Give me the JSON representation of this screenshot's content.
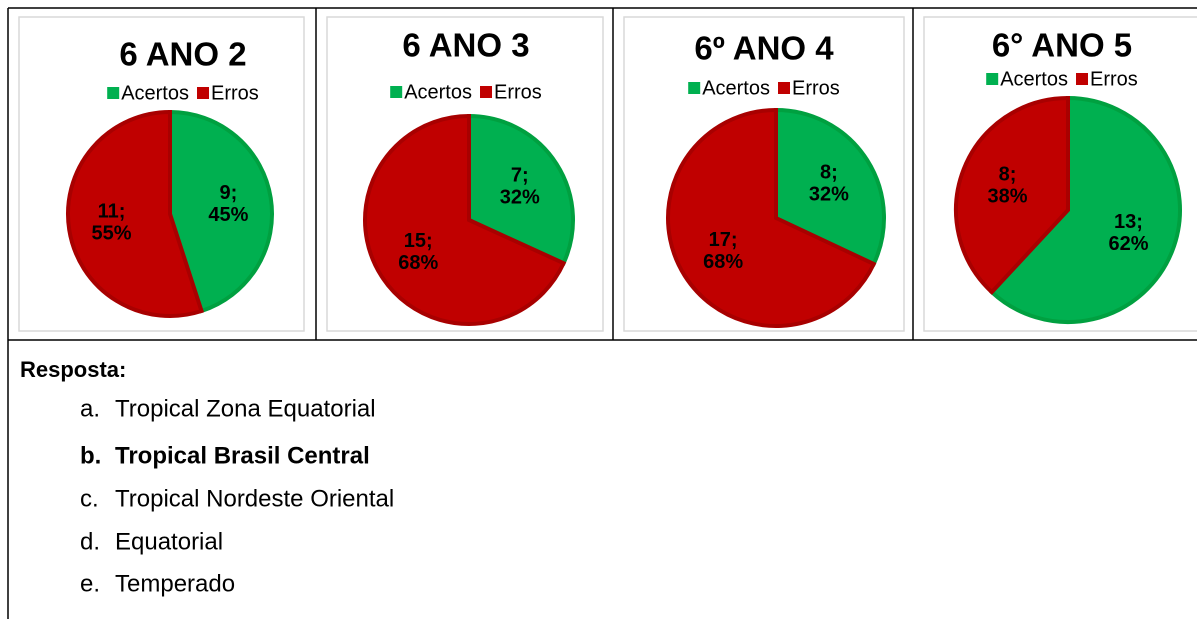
{
  "chart_data": [
    {
      "type": "pie",
      "title": "6 ANO 2",
      "categories": [
        "Acertos",
        "Erros"
      ],
      "values": [
        9,
        11
      ],
      "value_labels": [
        [
          "9;",
          "45%"
        ],
        [
          "11;",
          "55%"
        ]
      ],
      "colors": [
        "#00b050",
        "#c00000"
      ],
      "legend": "top"
    },
    {
      "type": "pie",
      "title": "6 ANO 3",
      "categories": [
        "Acertos",
        "Erros"
      ],
      "values": [
        7,
        15
      ],
      "value_labels": [
        [
          "7;",
          "32%"
        ],
        [
          "15;",
          "68%"
        ]
      ],
      "colors": [
        "#00b050",
        "#c00000"
      ],
      "legend": "top"
    },
    {
      "type": "pie",
      "title": "6º ANO 4",
      "categories": [
        "Acertos",
        "Erros"
      ],
      "values": [
        8,
        17
      ],
      "value_labels": [
        [
          "8;",
          "32%"
        ],
        [
          "17;",
          "68%"
        ]
      ],
      "colors": [
        "#00b050",
        "#c00000"
      ],
      "legend": "top"
    },
    {
      "type": "pie",
      "title": "6° ANO 5",
      "categories": [
        "Acertos",
        "Erros"
      ],
      "values": [
        13,
        8
      ],
      "value_labels": [
        [
          "13;",
          "62%"
        ],
        [
          "8;",
          "38%"
        ]
      ],
      "colors": [
        "#00b050",
        "#c00000"
      ],
      "legend": "top"
    }
  ],
  "answer": {
    "title": "Resposta:",
    "options": [
      {
        "marker": "a.",
        "text": "Tropical Zona Equatorial",
        "bold": false
      },
      {
        "marker": "b.",
        "text": "Tropical Brasil Central",
        "bold": true
      },
      {
        "marker": "c.",
        "text": "Tropical Nordeste Oriental",
        "bold": false
      },
      {
        "marker": "d.",
        "text": "Equatorial",
        "bold": false
      },
      {
        "marker": "e.",
        "text": "Temperado",
        "bold": false
      }
    ]
  }
}
